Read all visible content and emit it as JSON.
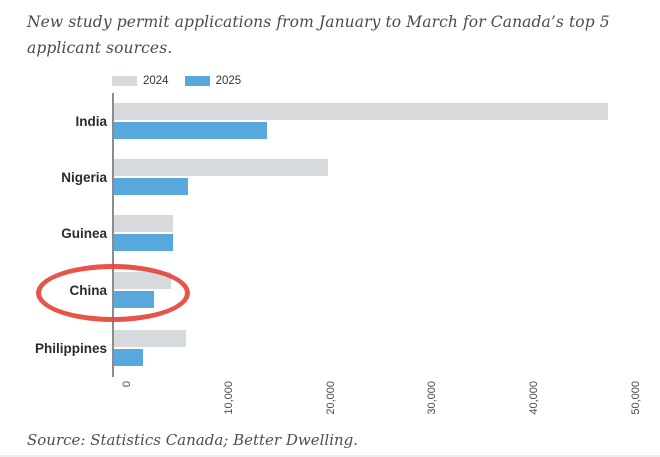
{
  "title": "New study permit applications from January to March for Canada’s top 5 applicant sources.",
  "source": "Source: Statistics Canada; Better Dwelling.",
  "colors": {
    "bar_2024": "#d6dadd",
    "bar_2025": "#58a8db",
    "annotation_red": "#e4453b",
    "axis": "#8c8c8c"
  },
  "legend": {
    "items": [
      {
        "label": "2024",
        "color": "#d6dadd"
      },
      {
        "label": "2025",
        "color": "#58a8db"
      }
    ]
  },
  "chart_data": {
    "type": "bar",
    "orientation": "horizontal",
    "title": "New study permit applications from January to March for Canada’s top 5 applicant sources.",
    "categories": [
      "India",
      "Nigeria",
      "Guinea",
      "China",
      "Philippines"
    ],
    "series": [
      {
        "name": "2024",
        "color": "#d6dadd",
        "values": [
          48500,
          21000,
          5800,
          5600,
          7100
        ]
      },
      {
        "name": "2025",
        "color": "#58a8db",
        "values": [
          15000,
          7300,
          5800,
          3900,
          2800
        ]
      }
    ],
    "xlim": [
      0,
      50000
    ],
    "xticks": [
      0,
      10000,
      20000,
      30000,
      40000,
      50000
    ],
    "xtick_labels": [
      "0",
      "10,000",
      "20,000",
      "30,000",
      "40,000",
      "50,000"
    ],
    "grid": false,
    "legend_position": "top-left",
    "annotation": {
      "type": "ellipse",
      "target": "China",
      "color": "#e4453b"
    }
  }
}
